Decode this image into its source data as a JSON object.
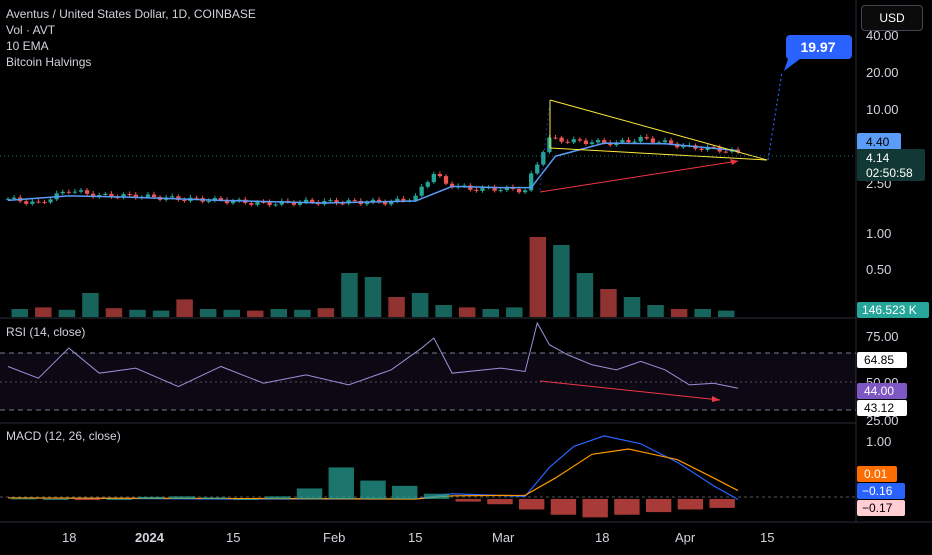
{
  "header": {
    "symbol_title": "Aventus / United States Dollar, 1D, COINBASE",
    "volume_label": "Vol · AVT",
    "ema_label": "10 EMA",
    "halvings_label": "Bitcoin Halvings",
    "currency_button": "USD"
  },
  "colors": {
    "up": "#26a69a",
    "down": "#ef5350",
    "ema": "#5b9cf6",
    "rsi_line": "#9c8fd8",
    "macd_line": "#2962ff",
    "signal_line": "#ff9800",
    "wedge": "#ffeb3b",
    "trend_arrow": "#f23645",
    "target": "#2962ff",
    "current_price_tag": "#113834"
  },
  "chart_data": [
    {
      "type": "line",
      "subtype": "candlestick-summary",
      "title": "Aventus / United States Dollar, 1D, COINBASE",
      "scale": "log",
      "ylim": [
        0.23,
        60
      ],
      "y_ticks": [
        "40.00",
        "20.00",
        "10.00",
        "2.50",
        "1.00",
        "0.50"
      ],
      "x_ticks": [
        "18",
        "2024",
        "15",
        "Feb",
        "15",
        "Mar",
        "18",
        "Apr",
        "15"
      ],
      "series": [
        {
          "name": "AVT close",
          "x": [
            "2023-12-11",
            "2023-12-16",
            "2023-12-21",
            "2023-12-26",
            "2024-01-01",
            "2024-01-08",
            "2024-01-15",
            "2024-01-22",
            "2024-01-29",
            "2024-02-05",
            "2024-02-12",
            "2024-02-16",
            "2024-02-19",
            "2024-02-21",
            "2024-02-25",
            "2024-03-01",
            "2024-03-05",
            "2024-03-07",
            "2024-03-09",
            "2024-03-12",
            "2024-03-16",
            "2024-03-20",
            "2024-03-24",
            "2024-03-28",
            "2024-04-01",
            "2024-04-05",
            "2024-04-09"
          ],
          "values": [
            1.85,
            1.7,
            2.15,
            1.95,
            1.95,
            1.85,
            1.8,
            1.7,
            1.75,
            1.75,
            1.75,
            1.9,
            2.9,
            2.4,
            2.2,
            2.2,
            2.15,
            3.4,
            5.3,
            5.1,
            5.0,
            4.9,
            5.3,
            4.95,
            4.55,
            4.45,
            4.14
          ]
        },
        {
          "name": "10 EMA",
          "x": [
            "2023-12-11",
            "2023-12-21",
            "2024-01-01",
            "2024-01-15",
            "2024-02-01",
            "2024-02-16",
            "2024-02-22",
            "2024-03-01",
            "2024-03-06",
            "2024-03-10",
            "2024-03-18",
            "2024-03-28",
            "2024-04-09"
          ],
          "values": [
            1.8,
            1.95,
            1.9,
            1.8,
            1.72,
            1.78,
            2.3,
            2.25,
            2.25,
            3.9,
            4.9,
            4.85,
            4.3
          ]
        }
      ],
      "current_price": "4.14",
      "ema_value": "4.40",
      "countdown": "02:50:58",
      "target_price": "19.97",
      "volume_label_value": "146.523 K"
    },
    {
      "type": "bar",
      "title": "Vol · AVT",
      "values": [
        0.1,
        0.12,
        0.09,
        0.3,
        0.11,
        0.09,
        0.08,
        0.22,
        0.1,
        0.09,
        0.08,
        0.1,
        0.09,
        0.11,
        0.55,
        0.5,
        0.25,
        0.3,
        0.15,
        0.12,
        0.1,
        0.12,
        1.0,
        0.9,
        0.55,
        0.35,
        0.25,
        0.15,
        0.1,
        0.1,
        0.08
      ]
    },
    {
      "type": "line",
      "title": "RSI (14, close)",
      "ylim": [
        25,
        80
      ],
      "y_ticks": [
        "75.00",
        "50.00",
        "25.00"
      ],
      "levels": [
        70,
        50,
        30
      ],
      "series": [
        {
          "name": "RSI",
          "x": [
            "2023-12-11",
            "2023-12-16",
            "2023-12-21",
            "2023-12-26",
            "2024-01-01",
            "2024-01-08",
            "2024-01-15",
            "2024-01-22",
            "2024-01-29",
            "2024-02-05",
            "2024-02-12",
            "2024-02-17",
            "2024-02-19",
            "2024-02-22",
            "2024-03-01",
            "2024-03-05",
            "2024-03-07",
            "2024-03-09",
            "2024-03-12",
            "2024-03-16",
            "2024-03-20",
            "2024-03-24",
            "2024-03-28",
            "2024-04-01",
            "2024-04-05",
            "2024-04-09"
          ],
          "values": [
            57,
            50,
            68,
            53,
            56,
            45,
            57,
            47,
            52,
            46,
            55,
            68,
            74,
            53,
            56,
            54,
            83,
            70,
            64,
            58,
            55,
            60,
            55,
            46,
            47,
            44
          ]
        }
      ],
      "labels": [
        "64.85",
        "44.00",
        "43.12"
      ]
    },
    {
      "type": "line",
      "title": "MACD (12, 26, close)",
      "ylim": [
        -0.4,
        1.35
      ],
      "y_ticks": [
        "1.00"
      ],
      "series": [
        {
          "name": "MACD",
          "x": [
            "2023-12-11",
            "2024-01-15",
            "2024-02-16",
            "2024-02-22",
            "2024-03-05",
            "2024-03-09",
            "2024-03-13",
            "2024-03-18",
            "2024-03-24",
            "2024-03-30",
            "2024-04-05",
            "2024-04-09"
          ],
          "values": [
            0.02,
            0.0,
            0.0,
            0.1,
            0.05,
            0.6,
            1.0,
            1.2,
            1.05,
            0.7,
            0.25,
            -0.01
          ]
        },
        {
          "name": "Signal",
          "x": [
            "2023-12-11",
            "2024-01-15",
            "2024-02-16",
            "2024-02-22",
            "2024-03-05",
            "2024-03-10",
            "2024-03-16",
            "2024-03-22",
            "2024-03-30",
            "2024-04-05",
            "2024-04-09"
          ],
          "values": [
            0.02,
            0.01,
            0.0,
            0.06,
            0.07,
            0.4,
            0.85,
            0.95,
            0.75,
            0.4,
            0.16
          ]
        }
      ],
      "histogram": [
        0.01,
        0.0,
        -0.01,
        0.0,
        0.04,
        0.05,
        0.03,
        0.0,
        0.05,
        0.2,
        0.6,
        0.35,
        0.25,
        0.1,
        -0.05,
        -0.1,
        -0.2,
        -0.3,
        -0.35,
        -0.3,
        -0.25,
        -0.2,
        -0.17
      ],
      "labels": [
        "0.01",
        "−0.16",
        "−0.17"
      ]
    }
  ]
}
